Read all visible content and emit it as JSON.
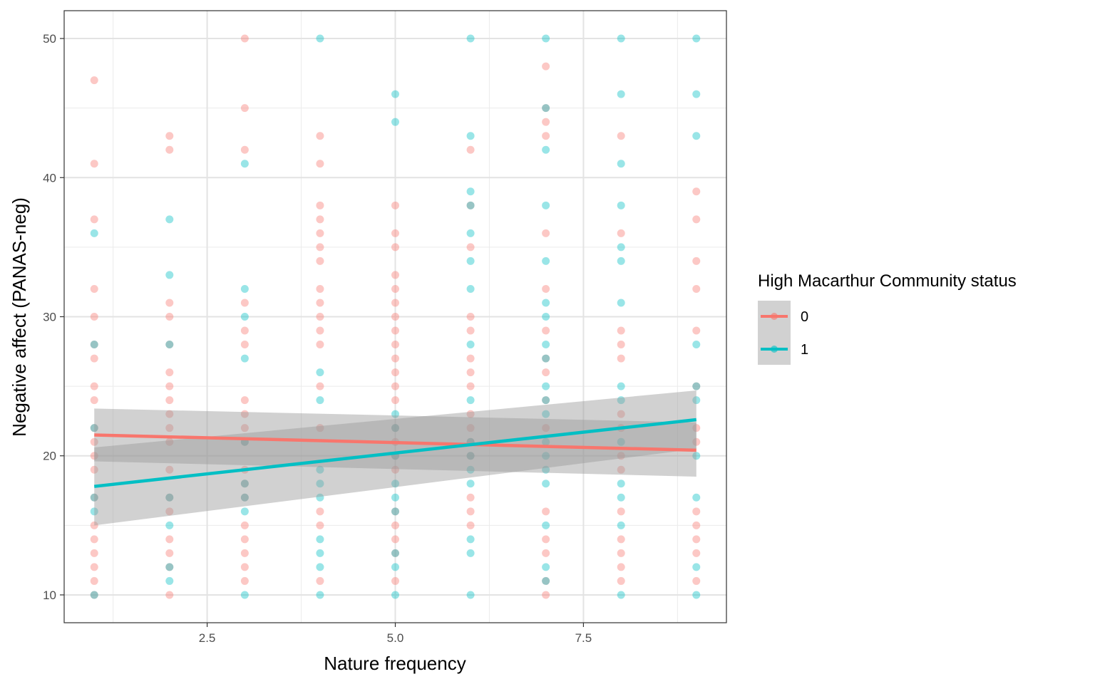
{
  "chart_data": {
    "type": "scatter",
    "xlabel": "Nature frequency",
    "ylabel": "Negative affect (PANAS-neg)",
    "xlim": [
      0.6,
      9.4
    ],
    "ylim": [
      8,
      52
    ],
    "x_ticks": [
      2.5,
      5.0,
      7.5
    ],
    "x_tick_labels": [
      "2.5",
      "5.0",
      "7.5"
    ],
    "y_ticks": [
      10,
      20,
      30,
      40,
      50
    ],
    "y_tick_labels": [
      "10",
      "20",
      "30",
      "40",
      "50"
    ],
    "grid": true,
    "legend": {
      "title": "High Macarthur Community status",
      "placement": "right",
      "entries": [
        "0",
        "1"
      ]
    },
    "colors": {
      "0": "#F8766D",
      "1": "#00BFC4",
      "band": "#999999"
    },
    "series": [
      {
        "name": "0",
        "points": [
          [
            1,
            47
          ],
          [
            1,
            41
          ],
          [
            1,
            37
          ],
          [
            1,
            32
          ],
          [
            1,
            30
          ],
          [
            1,
            28
          ],
          [
            1,
            27
          ],
          [
            1,
            25
          ],
          [
            1,
            24
          ],
          [
            1,
            22
          ],
          [
            1,
            21
          ],
          [
            1,
            20
          ],
          [
            1,
            19
          ],
          [
            1,
            17
          ],
          [
            1,
            15
          ],
          [
            1,
            14
          ],
          [
            1,
            13
          ],
          [
            1,
            12
          ],
          [
            1,
            11
          ],
          [
            1,
            10
          ],
          [
            2,
            43
          ],
          [
            2,
            42
          ],
          [
            2,
            31
          ],
          [
            2,
            30
          ],
          [
            2,
            28
          ],
          [
            2,
            26
          ],
          [
            2,
            25
          ],
          [
            2,
            24
          ],
          [
            2,
            23
          ],
          [
            2,
            22
          ],
          [
            2,
            21
          ],
          [
            2,
            19
          ],
          [
            2,
            17
          ],
          [
            2,
            16
          ],
          [
            2,
            14
          ],
          [
            2,
            13
          ],
          [
            2,
            12
          ],
          [
            2,
            10
          ],
          [
            3,
            50
          ],
          [
            3,
            45
          ],
          [
            3,
            42
          ],
          [
            3,
            31
          ],
          [
            3,
            29
          ],
          [
            3,
            28
          ],
          [
            3,
            24
          ],
          [
            3,
            23
          ],
          [
            3,
            22
          ],
          [
            3,
            21
          ],
          [
            3,
            19
          ],
          [
            3,
            18
          ],
          [
            3,
            17
          ],
          [
            3,
            15
          ],
          [
            3,
            14
          ],
          [
            3,
            13
          ],
          [
            3,
            12
          ],
          [
            3,
            11
          ],
          [
            4,
            43
          ],
          [
            4,
            41
          ],
          [
            4,
            38
          ],
          [
            4,
            37
          ],
          [
            4,
            36
          ],
          [
            4,
            35
          ],
          [
            4,
            34
          ],
          [
            4,
            32
          ],
          [
            4,
            31
          ],
          [
            4,
            30
          ],
          [
            4,
            29
          ],
          [
            4,
            28
          ],
          [
            4,
            25
          ],
          [
            4,
            22
          ],
          [
            4,
            16
          ],
          [
            4,
            15
          ],
          [
            4,
            11
          ],
          [
            5,
            38
          ],
          [
            5,
            36
          ],
          [
            5,
            35
          ],
          [
            5,
            33
          ],
          [
            5,
            32
          ],
          [
            5,
            31
          ],
          [
            5,
            30
          ],
          [
            5,
            29
          ],
          [
            5,
            28
          ],
          [
            5,
            27
          ],
          [
            5,
            26
          ],
          [
            5,
            25
          ],
          [
            5,
            24
          ],
          [
            5,
            22
          ],
          [
            5,
            21
          ],
          [
            5,
            20
          ],
          [
            5,
            19
          ],
          [
            5,
            16
          ],
          [
            5,
            15
          ],
          [
            5,
            14
          ],
          [
            5,
            13
          ],
          [
            5,
            11
          ],
          [
            6,
            42
          ],
          [
            6,
            38
          ],
          [
            6,
            35
          ],
          [
            6,
            30
          ],
          [
            6,
            29
          ],
          [
            6,
            27
          ],
          [
            6,
            26
          ],
          [
            6,
            25
          ],
          [
            6,
            23
          ],
          [
            6,
            22
          ],
          [
            6,
            21
          ],
          [
            6,
            20
          ],
          [
            6,
            17
          ],
          [
            6,
            16
          ],
          [
            6,
            15
          ],
          [
            7,
            48
          ],
          [
            7,
            45
          ],
          [
            7,
            44
          ],
          [
            7,
            43
          ],
          [
            7,
            36
          ],
          [
            7,
            32
          ],
          [
            7,
            29
          ],
          [
            7,
            27
          ],
          [
            7,
            26
          ],
          [
            7,
            24
          ],
          [
            7,
            22
          ],
          [
            7,
            16
          ],
          [
            7,
            14
          ],
          [
            7,
            13
          ],
          [
            7,
            11
          ],
          [
            7,
            10
          ],
          [
            8,
            43
          ],
          [
            8,
            36
          ],
          [
            8,
            29
          ],
          [
            8,
            28
          ],
          [
            8,
            27
          ],
          [
            8,
            23
          ],
          [
            8,
            22
          ],
          [
            8,
            20
          ],
          [
            8,
            19
          ],
          [
            8,
            16
          ],
          [
            8,
            14
          ],
          [
            8,
            13
          ],
          [
            8,
            12
          ],
          [
            8,
            11
          ],
          [
            9,
            39
          ],
          [
            9,
            37
          ],
          [
            9,
            34
          ],
          [
            9,
            32
          ],
          [
            9,
            29
          ],
          [
            9,
            25
          ],
          [
            9,
            22
          ],
          [
            9,
            21
          ],
          [
            9,
            16
          ],
          [
            9,
            15
          ],
          [
            9,
            14
          ],
          [
            9,
            13
          ],
          [
            9,
            11
          ]
        ],
        "fit": {
          "x": [
            1,
            9
          ],
          "y": [
            21.5,
            20.4
          ],
          "lower": [
            19.6,
            18.5
          ],
          "upper": [
            23.4,
            22.4
          ]
        }
      },
      {
        "name": "1",
        "points": [
          [
            1,
            36
          ],
          [
            1,
            28
          ],
          [
            1,
            22
          ],
          [
            1,
            17
          ],
          [
            1,
            16
          ],
          [
            1,
            10
          ],
          [
            2,
            37
          ],
          [
            2,
            33
          ],
          [
            2,
            28
          ],
          [
            2,
            17
          ],
          [
            2,
            15
          ],
          [
            2,
            12
          ],
          [
            2,
            11
          ],
          [
            3,
            41
          ],
          [
            3,
            32
          ],
          [
            3,
            30
          ],
          [
            3,
            27
          ],
          [
            3,
            21
          ],
          [
            3,
            18
          ],
          [
            3,
            17
          ],
          [
            3,
            16
          ],
          [
            3,
            10
          ],
          [
            4,
            50
          ],
          [
            4,
            26
          ],
          [
            4,
            24
          ],
          [
            4,
            19
          ],
          [
            4,
            18
          ],
          [
            4,
            17
          ],
          [
            4,
            14
          ],
          [
            4,
            13
          ],
          [
            4,
            12
          ],
          [
            4,
            10
          ],
          [
            5,
            46
          ],
          [
            5,
            44
          ],
          [
            5,
            23
          ],
          [
            5,
            22
          ],
          [
            5,
            20
          ],
          [
            5,
            18
          ],
          [
            5,
            17
          ],
          [
            5,
            16
          ],
          [
            5,
            13
          ],
          [
            5,
            12
          ],
          [
            5,
            10
          ],
          [
            6,
            50
          ],
          [
            6,
            43
          ],
          [
            6,
            39
          ],
          [
            6,
            38
          ],
          [
            6,
            36
          ],
          [
            6,
            34
          ],
          [
            6,
            32
          ],
          [
            6,
            28
          ],
          [
            6,
            24
          ],
          [
            6,
            21
          ],
          [
            6,
            20
          ],
          [
            6,
            19
          ],
          [
            6,
            18
          ],
          [
            6,
            14
          ],
          [
            6,
            13
          ],
          [
            6,
            10
          ],
          [
            7,
            50
          ],
          [
            7,
            45
          ],
          [
            7,
            42
          ],
          [
            7,
            38
          ],
          [
            7,
            34
          ],
          [
            7,
            31
          ],
          [
            7,
            30
          ],
          [
            7,
            28
          ],
          [
            7,
            27
          ],
          [
            7,
            25
          ],
          [
            7,
            24
          ],
          [
            7,
            23
          ],
          [
            7,
            21
          ],
          [
            7,
            20
          ],
          [
            7,
            19
          ],
          [
            7,
            18
          ],
          [
            7,
            15
          ],
          [
            7,
            12
          ],
          [
            7,
            11
          ],
          [
            8,
            50
          ],
          [
            8,
            46
          ],
          [
            8,
            41
          ],
          [
            8,
            38
          ],
          [
            8,
            35
          ],
          [
            8,
            34
          ],
          [
            8,
            31
          ],
          [
            8,
            25
          ],
          [
            8,
            24
          ],
          [
            8,
            21
          ],
          [
            8,
            18
          ],
          [
            8,
            17
          ],
          [
            8,
            15
          ],
          [
            8,
            10
          ],
          [
            9,
            50
          ],
          [
            9,
            46
          ],
          [
            9,
            43
          ],
          [
            9,
            28
          ],
          [
            9,
            25
          ],
          [
            9,
            24
          ],
          [
            9,
            20
          ],
          [
            9,
            17
          ],
          [
            9,
            12
          ],
          [
            9,
            10
          ]
        ],
        "fit": {
          "x": [
            1,
            9
          ],
          "y": [
            17.8,
            22.6
          ],
          "lower": [
            15.0,
            20.5
          ],
          "upper": [
            20.6,
            24.7
          ]
        }
      }
    ]
  }
}
